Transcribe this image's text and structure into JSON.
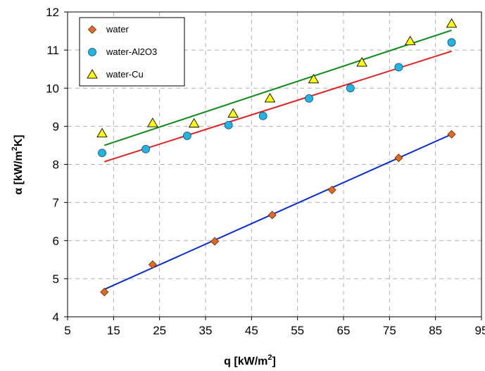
{
  "chart_data": {
    "type": "scatter",
    "title": "",
    "xlabel": {
      "main": "q [kW/m",
      "sup": "2",
      "tail": "]"
    },
    "ylabel": {
      "main": "α [kW/m",
      "sup": "2",
      "tail": "K]"
    },
    "xlim": [
      5,
      95
    ],
    "ylim": [
      4,
      12
    ],
    "xticks": [
      5,
      15,
      25,
      35,
      45,
      55,
      65,
      75,
      85,
      95
    ],
    "yticks": [
      4,
      5,
      6,
      7,
      8,
      9,
      10,
      11,
      12
    ],
    "grid": true,
    "legend_position": "top-left",
    "series": [
      {
        "name": "water",
        "marker": "diamond",
        "color": "#e06a22",
        "x": [
          13,
          23.5,
          37,
          49.5,
          62.5,
          77,
          88.5
        ],
        "y": [
          4.65,
          5.37,
          5.98,
          6.67,
          7.33,
          8.17,
          8.79
        ],
        "fit": {
          "x": [
            13,
            88.5
          ],
          "y": [
            4.72,
            8.79
          ],
          "color": "#0a2fcf"
        }
      },
      {
        "name": "water-Al2O3",
        "marker": "circle",
        "color": "#24b4e2",
        "x": [
          12.5,
          22,
          31,
          40,
          47.5,
          57.5,
          66.5,
          77,
          88.5
        ],
        "y": [
          8.3,
          8.4,
          8.75,
          9.03,
          9.27,
          9.73,
          10.0,
          10.55,
          11.2
        ],
        "fit": {
          "x": [
            13,
            88.5
          ],
          "y": [
            8.07,
            10.97
          ],
          "color": "#e02020"
        }
      },
      {
        "name": "water-Cu",
        "marker": "triangle",
        "color": "#ffff00",
        "x": [
          12.5,
          23.5,
          32.5,
          41,
          49,
          58.5,
          69,
          79.5,
          88.5
        ],
        "y": [
          8.81,
          9.08,
          9.07,
          9.33,
          9.73,
          10.23,
          10.67,
          11.23,
          11.69
        ],
        "fit": {
          "x": [
            13,
            88.5
          ],
          "y": [
            8.5,
            11.52
          ],
          "color": "#0f8a1a"
        }
      }
    ]
  }
}
